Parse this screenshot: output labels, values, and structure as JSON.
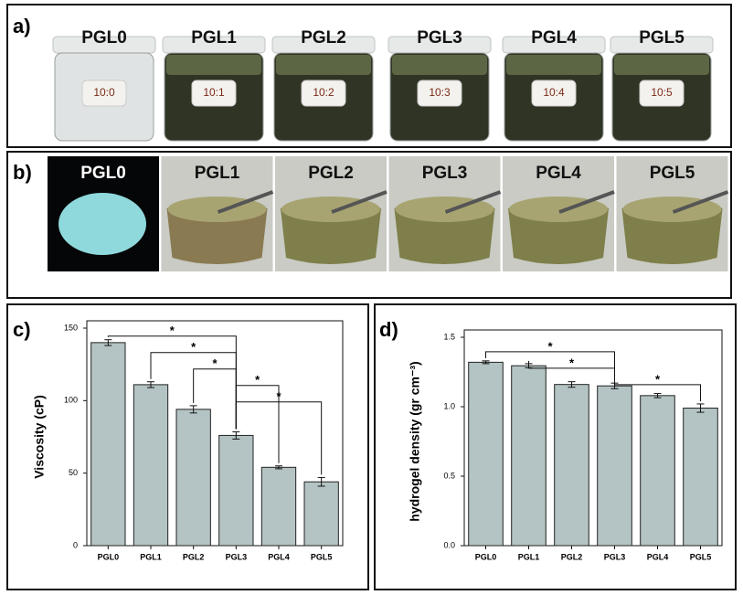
{
  "panels": {
    "a": {
      "label": "a)",
      "items": [
        "PGL0",
        "PGL1",
        "PGL2",
        "PGL3",
        "PGL4",
        "PGL5"
      ],
      "tags": [
        "10:0",
        "10:1",
        "10:2",
        "10:3",
        "10:4",
        "10:5"
      ]
    },
    "b": {
      "label": "b)",
      "items": [
        "PGL0",
        "PGL1",
        "PGL2",
        "PGL3",
        "PGL4",
        "PGL5"
      ]
    }
  },
  "chart_data": [
    {
      "type": "bar",
      "panel_label": "c)",
      "ylabel": "Viscosity (cP)",
      "categories": [
        "PGL0",
        "PGL1",
        "PGL2",
        "PGL3",
        "PGL4",
        "PGL5"
      ],
      "values": [
        140,
        111,
        94,
        76,
        54,
        44
      ],
      "errors": [
        2,
        2,
        2.5,
        2.5,
        1,
        3
      ],
      "color": "#b4c3c3",
      "ylim": [
        0,
        150
      ],
      "yticks": [
        0,
        50,
        100,
        150
      ],
      "annotations": [
        {
          "label": "*",
          "pair": [
            "PGL0",
            "PGL3"
          ]
        },
        {
          "label": "*",
          "pair": [
            "PGL1",
            "PGL3"
          ]
        },
        {
          "label": "*",
          "pair": [
            "PGL2",
            "PGL3"
          ]
        },
        {
          "label": "*",
          "pair": [
            "PGL3",
            "PGL4"
          ]
        },
        {
          "label": "*",
          "pair": [
            "PGL3",
            "PGL5"
          ]
        }
      ]
    },
    {
      "type": "bar",
      "panel_label": "d)",
      "ylabel": "hydrogel density (gr cm⁻³)",
      "categories": [
        "PGL0",
        "PGL1",
        "PGL2",
        "PGL3",
        "PGL4",
        "PGL5"
      ],
      "values": [
        1.32,
        1.295,
        1.16,
        1.15,
        1.08,
        0.99
      ],
      "errors": [
        0.01,
        0.015,
        0.02,
        0.02,
        0.015,
        0.03
      ],
      "color": "#b4c3c3",
      "ylim": [
        0,
        1.5
      ],
      "yticks": [
        {
          "value": 0,
          "label": "0.0"
        },
        {
          "value": 0.5,
          "label": "0.5"
        },
        {
          "value": 1,
          "label": "1.0"
        },
        {
          "value": 1.5,
          "label": "1.5"
        }
      ],
      "annotations": [
        {
          "label": "*",
          "pair": [
            "PGL0",
            "PGL3"
          ]
        },
        {
          "label": "*",
          "pair": [
            "PGL1",
            "PGL3"
          ]
        },
        {
          "label": "*",
          "pair": [
            "PGL3",
            "PGL5"
          ]
        }
      ]
    }
  ]
}
